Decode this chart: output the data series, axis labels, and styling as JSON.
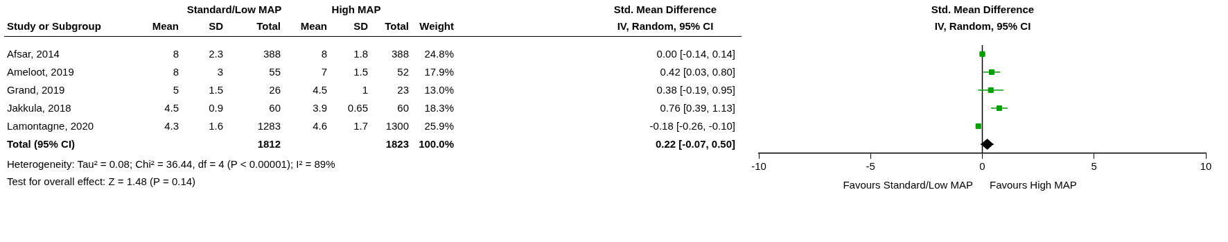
{
  "chart_data": [
    {
      "type": "other",
      "categories": [
        "Study or Subgroup",
        "Mean",
        "SD",
        "Total",
        "Mean",
        "SD",
        "Total",
        "Weight",
        "Std. Mean Difference\nIV, Random, 95% CI"
      ],
      "y_categories": [
        "Afsar, 2014",
        "Ameloot, 2019",
        "Grand, 2019",
        "Jakkula, 2018",
        "Lamontagne, 2020",
        "Total (95% CI)"
      ],
      "cell_labels": [
        [
          "8",
          "2.3",
          "388",
          "8",
          "1.8",
          "388",
          "24.8%",
          "0.00 [-0.14, 0.14]"
        ],
        [
          "8",
          "3",
          "55",
          "7",
          "1.5",
          "52",
          "17.9%",
          "0.42 [0.03, 0.80]"
        ],
        [
          "5",
          "1.5",
          "26",
          "4.5",
          "1",
          "23",
          "13.0%",
          "0.38 [-0.19, 0.95]"
        ],
        [
          "4.5",
          "0.9",
          "60",
          "3.9",
          "0.65",
          "60",
          "18.3%",
          "0.76 [0.39, 1.13]"
        ],
        [
          "4.3",
          "1.6",
          "1283",
          "4.6",
          "1.7",
          "1300",
          "25.9%",
          "-0.18 [-0.26, -0.10]"
        ],
        [
          null,
          null,
          "1812",
          null,
          null,
          "1823",
          "100.0%",
          "0.22 [-0.07, 0.50]"
        ]
      ],
      "annotations": [
        "Standard/Low MAP",
        "High MAP",
        "Heterogeneity: Tau² = 0.08; Chi² = 36.44, df = 4 (P < 0.00001); I² = 89%",
        "Test for overall effect: Z = 1.48 (P = 0.14)"
      ]
    },
    {
      "type": "scatter",
      "orientation": "horizontal",
      "title": "Std. Mean Difference",
      "subtitle": "IV, Random, 95% CI",
      "categories": [
        null,
        null,
        null,
        null,
        null,
        null
      ],
      "series": [
        {
          "color": "#00a000",
          "marker": "square",
          "values": [
            0.0,
            0.42,
            0.38,
            0.76,
            -0.18,
            null
          ],
          "errors": [
            [
              -0.14,
              0.14
            ],
            [
              0.03,
              0.8
            ],
            [
              -0.19,
              0.95
            ],
            [
              0.39,
              1.13
            ],
            [
              -0.26,
              -0.1
            ],
            null
          ]
        },
        {
          "color": "#000000",
          "marker": "diamond",
          "values": [
            null,
            null,
            null,
            null,
            null,
            0.22
          ],
          "errors": [
            null,
            null,
            null,
            null,
            null,
            [
              -0.07,
              0.5
            ]
          ]
        }
      ],
      "xlim": [
        -10,
        10
      ],
      "xticks": [
        -10,
        -5,
        0,
        5,
        10
      ],
      "ref_lines": [
        {
          "axis": "x",
          "value": 0,
          "color": "#000000"
        }
      ],
      "annotations": [
        "Favours Standard/Low MAP",
        "Favours High MAP"
      ]
    }
  ]
}
